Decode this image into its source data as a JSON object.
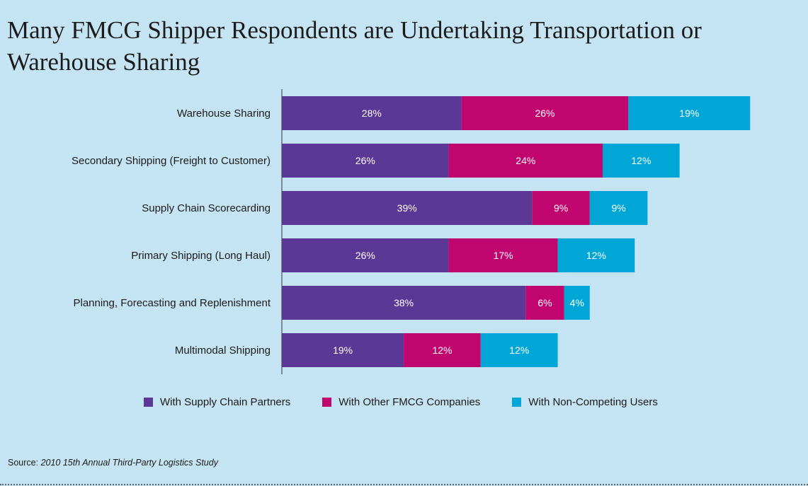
{
  "title": "Many FMCG Shipper Respondents are Undertaking Transportation or Warehouse Sharing",
  "source": {
    "prefix": "Source:",
    "citation": "2010 15th Annual Third-Party Logistics Study"
  },
  "colors": {
    "background": "#c5e4f3",
    "supply_chain_partners": "#5b3796",
    "other_fmcg": "#c0056e",
    "non_competing": "#00a6d6"
  },
  "chart_data": {
    "type": "bar",
    "orientation": "horizontal",
    "stacked": true,
    "title": "Many FMCG Shipper Respondents are Undertaking Transportation or Warehouse Sharing",
    "categories": [
      "Warehouse Sharing",
      "Secondary Shipping (Freight to Customer)",
      "Supply Chain Scorecarding",
      "Primary Shipping (Long Haul)",
      "Planning, Forecasting and Replenishment",
      "Multimodal Shipping"
    ],
    "series": [
      {
        "name": "With Supply Chain Partners",
        "color": "#5b3796",
        "values": [
          28,
          26,
          39,
          26,
          38,
          19
        ]
      },
      {
        "name": "With Other FMCG Companies",
        "color": "#c0056e",
        "values": [
          26,
          24,
          9,
          17,
          6,
          12
        ]
      },
      {
        "name": "With Non-Competing Users",
        "color": "#00a6d6",
        "values": [
          19,
          12,
          9,
          12,
          4,
          12
        ]
      }
    ],
    "value_suffix": "%",
    "xlim": [
      0,
      75
    ],
    "grid": false,
    "legend_position": "bottom"
  }
}
